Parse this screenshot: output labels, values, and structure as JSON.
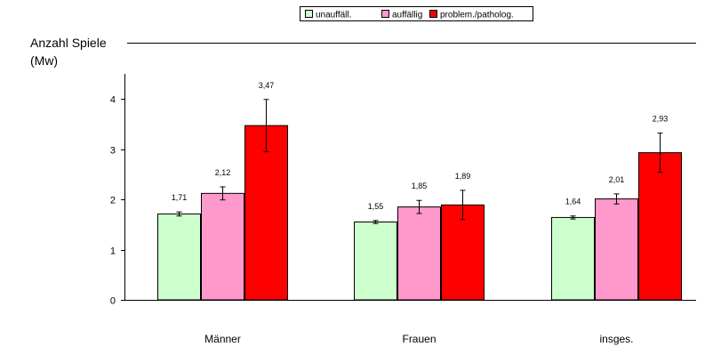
{
  "chart_data": {
    "type": "bar",
    "title": "",
    "ylabel_line1": "Anzahl Spiele",
    "ylabel_line2": "(Mw)",
    "xlabel": "",
    "categories": [
      "Männer",
      "Frauen",
      "insges."
    ],
    "ylim": [
      0,
      4.5
    ],
    "yticks": [
      "0",
      "1",
      "2",
      "3",
      "4"
    ],
    "grid": false,
    "legend_position": "top-center",
    "series": [
      {
        "name": "unauffäll.",
        "color": "#ccffcc",
        "values": [
          1.71,
          1.55,
          1.64
        ],
        "labels": [
          "1,71",
          "1,55",
          "1,64"
        ],
        "errors": [
          0.04,
          0.03,
          0.03
        ]
      },
      {
        "name": "auffällig",
        "color": "#ff99cc",
        "values": [
          2.12,
          1.85,
          2.01
        ],
        "labels": [
          "2,12",
          "1,85",
          "2,01"
        ],
        "errors": [
          0.13,
          0.13,
          0.1
        ]
      },
      {
        "name": "problem./patholog.",
        "color": "#ff0000",
        "values": [
          3.47,
          1.89,
          2.93
        ],
        "labels": [
          "3,47",
          "1,89",
          "2,93"
        ],
        "errors": [
          0.52,
          0.29,
          0.39
        ]
      }
    ]
  }
}
